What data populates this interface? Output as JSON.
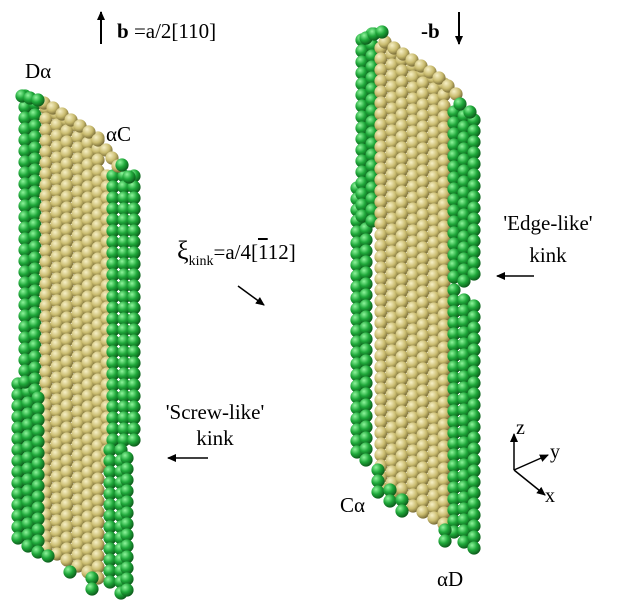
{
  "labels": {
    "burgers_b": "b",
    "burgers_eq": " =a/2[110]",
    "neg_b": "-b",
    "d_alpha": "Dα",
    "alpha_c": "αC",
    "c_alpha": "Cα",
    "alpha_d": "αD",
    "xi_symbol": "ξ",
    "xi_sub": "kink",
    "xi_eq_a": "=a/4[",
    "xi_eq_bar": "1",
    "xi_eq_b": "12]",
    "edge_like": "'Edge-like'",
    "edge_kink": "kink",
    "screw_like": "'Screw-like'",
    "screw_kink": "kink",
    "axis_z": "z",
    "axis_y": "y",
    "axis_x": "x"
  },
  "colors": {
    "green": "#1fa83a",
    "green_highlight": "#8ff59c",
    "green_shadow": "#0b5418",
    "tan": "#c9bb6e",
    "tan_highlight": "#f7f0c6",
    "tan_shadow": "#6e6230"
  }
}
